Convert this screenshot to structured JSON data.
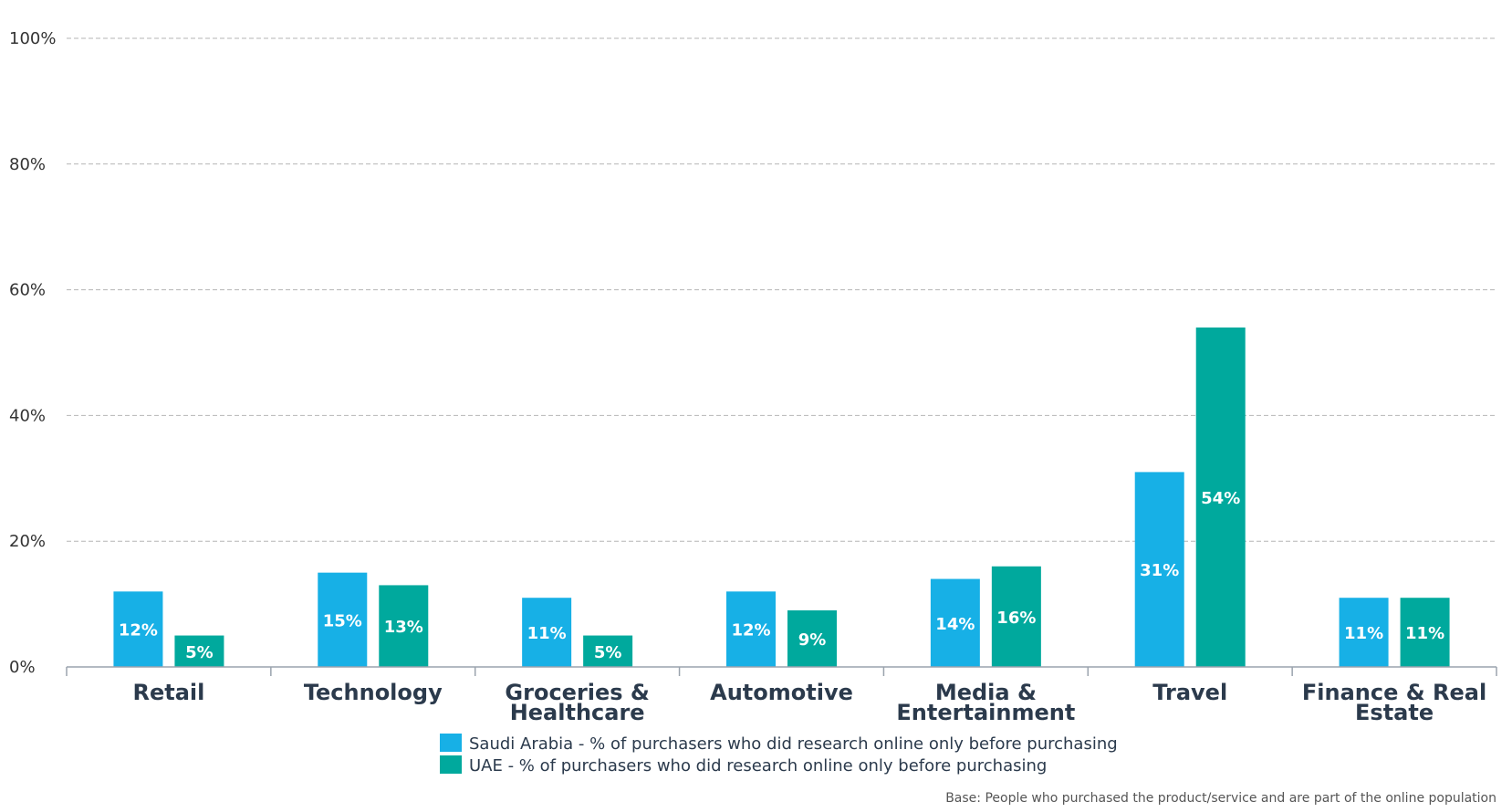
{
  "chart_data": {
    "type": "bar",
    "categories": [
      [
        "Retail"
      ],
      [
        "Technology"
      ],
      [
        "Groceries &",
        "Healthcare"
      ],
      [
        "Automotive"
      ],
      [
        "Media &",
        "Entertainment"
      ],
      [
        "Travel"
      ],
      [
        "Finance & Real",
        "Estate"
      ]
    ],
    "series": [
      {
        "name": "Saudi Arabia - % of purchasers who did research online only before purchasing",
        "color": "#17b0e6",
        "values": [
          12,
          15,
          11,
          12,
          14,
          31,
          11
        ],
        "labels": [
          "12%",
          "15%",
          "11%",
          "12%",
          "14%",
          "31%",
          "11%"
        ]
      },
      {
        "name": "UAE - % of purchasers who did research online only before purchasing",
        "color": "#00a99d",
        "values": [
          5,
          13,
          5,
          9,
          16,
          54,
          11
        ],
        "labels": [
          "5%",
          "13%",
          "5%",
          "9%",
          "16%",
          "54%",
          "11%"
        ]
      }
    ],
    "ylim": [
      0,
      100
    ],
    "yticks": [
      0,
      20,
      40,
      60,
      80,
      100
    ],
    "ytick_labels": [
      "0%",
      "20%",
      "40%",
      "60%",
      "80%",
      "100%"
    ],
    "grid": true,
    "legend_position": "bottom-center",
    "footnote": "Base: People who purchased the product/service and are part of the online population"
  }
}
